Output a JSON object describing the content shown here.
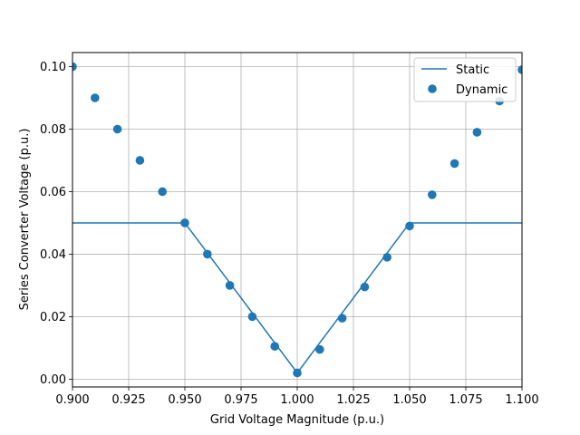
{
  "chart_data": {
    "type": "line+scatter",
    "xlabel": "Grid Voltage Magnitude (p.u.)",
    "ylabel": "Series Converter Voltage (p.u.)",
    "xlim": [
      0.9,
      1.1
    ],
    "ylim": [
      -0.0025,
      0.1045
    ],
    "xticks": [
      "0.900",
      "0.925",
      "0.950",
      "0.975",
      "1.000",
      "1.025",
      "1.050",
      "1.075",
      "1.100"
    ],
    "yticks": [
      "0.00",
      "0.02",
      "0.04",
      "0.06",
      "0.08",
      "0.10"
    ],
    "grid": true,
    "legend_position": "top-right",
    "colors": {
      "series": "#1f77b4",
      "grid": "#b0b0b0"
    },
    "series": [
      {
        "name": "Static",
        "kind": "line",
        "x": [
          0.9,
          0.95,
          1.0,
          1.05,
          1.1
        ],
        "y": [
          0.05,
          0.05,
          0.002,
          0.05,
          0.05
        ]
      },
      {
        "name": "Dynamic",
        "kind": "scatter",
        "x": [
          0.9,
          0.91,
          0.92,
          0.93,
          0.94,
          0.95,
          0.96,
          0.97,
          0.98,
          0.99,
          1.0,
          1.01,
          1.02,
          1.03,
          1.04,
          1.05,
          1.06,
          1.07,
          1.08,
          1.09,
          1.1
        ],
        "y": [
          0.1,
          0.09,
          0.08,
          0.07,
          0.06,
          0.05,
          0.04,
          0.03,
          0.02,
          0.0105,
          0.002,
          0.0095,
          0.0195,
          0.0295,
          0.039,
          0.049,
          0.059,
          0.069,
          0.079,
          0.089,
          0.099
        ]
      }
    ]
  }
}
